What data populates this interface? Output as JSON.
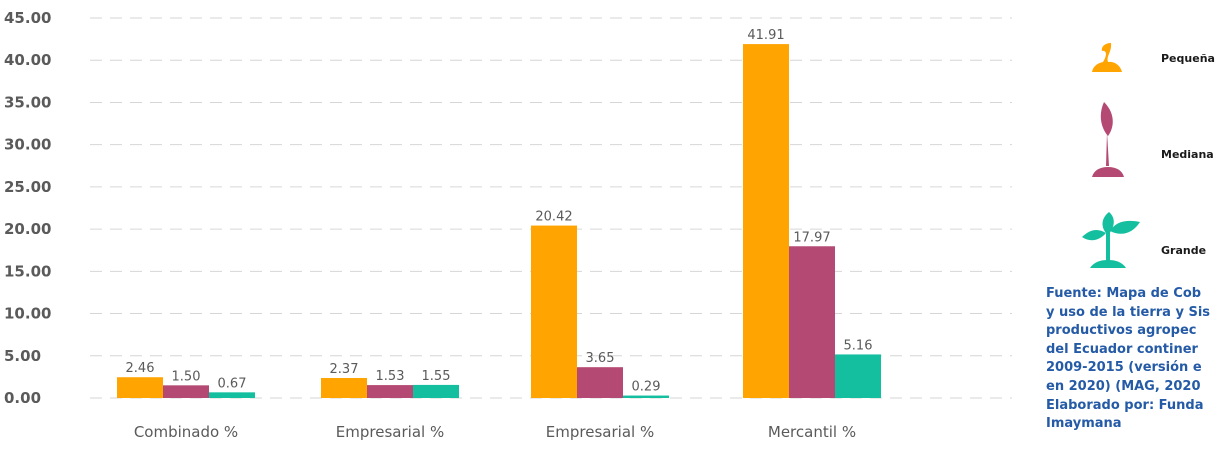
{
  "colors": {
    "pequena": "#FFA400",
    "mediana": "#B44A74",
    "grande": "#14BF9F"
  },
  "legend": [
    {
      "label": "Pequeña",
      "icon": "sprout-icon",
      "color": "#FFA400"
    },
    {
      "label": "Mediana",
      "icon": "leaf-icon",
      "color": "#B44A74"
    },
    {
      "label": "Grande",
      "icon": "seedling-icon",
      "color": "#14BF9F"
    }
  ],
  "source_text": "Fuente: Mapa de Cob\ny uso de la tierra y Sis\nproductivos agropec\ndel Ecuador continer\n2009-2015 (versión e\nen 2020) (MAG, 2020\nElaborado por: Funda\nImaymana",
  "chart_data": {
    "type": "bar",
    "categories": [
      "Combinado %",
      "Empresarial %",
      "Empresarial %",
      "Mercantil %"
    ],
    "series": [
      {
        "name": "Pequeña",
        "color": "#FFA400",
        "values": [
          2.46,
          2.37,
          20.42,
          41.91
        ],
        "labels": [
          "2.46",
          "2.37",
          "20.42",
          "41.91"
        ]
      },
      {
        "name": "Mediana",
        "color": "#B44A74",
        "values": [
          1.5,
          1.53,
          3.65,
          17.97
        ],
        "labels": [
          "1.50",
          "1.53",
          "3.65",
          "17.97"
        ]
      },
      {
        "name": "Grande",
        "color": "#14BF9F",
        "values": [
          0.67,
          1.55,
          0.29,
          5.16
        ],
        "labels": [
          "0.67",
          "1.55",
          "0.29",
          "5.16"
        ]
      }
    ],
    "yticks": [
      "0.00",
      "5.00",
      "10.00",
      "15.00",
      "20.00",
      "25.00",
      "30.00",
      "35.00",
      "40.00",
      "45.00"
    ],
    "ylim": [
      0,
      45
    ],
    "grid": true,
    "legend_position": "right"
  }
}
